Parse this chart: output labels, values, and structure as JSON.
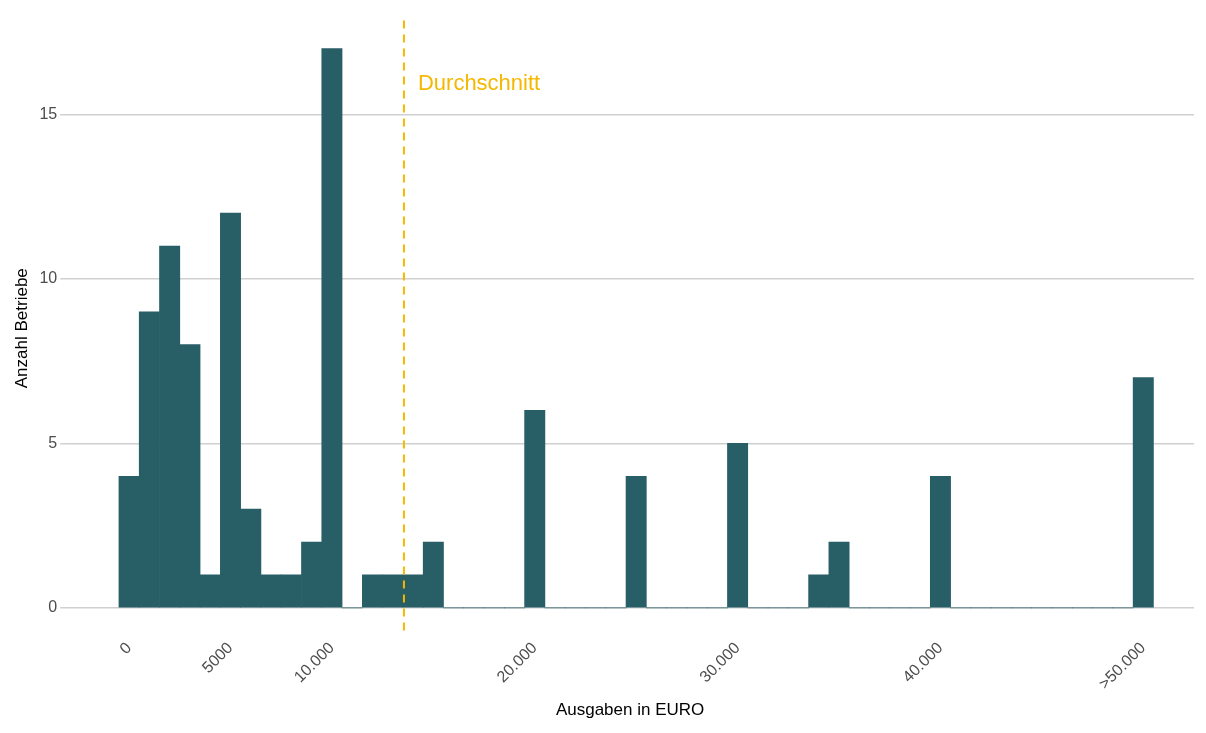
{
  "chart_data": {
    "type": "histogram",
    "xlabel": "Ausgaben in EURO",
    "ylabel": "Anzahl Betriebe",
    "bins": [
      -500,
      500,
      1500,
      2500,
      3500,
      4500,
      5500,
      6500,
      7500,
      8500,
      9500,
      10500,
      11500,
      12500,
      13500,
      14500,
      15500,
      16500,
      17500,
      18500,
      19500,
      20500,
      21500,
      22500,
      23500,
      24500,
      25500,
      26500,
      27500,
      28500,
      29500,
      30500,
      31500,
      32500,
      33500,
      34500,
      35500,
      36500,
      37500,
      38500,
      39500,
      40500,
      41500,
      42500,
      43500,
      44500,
      45500,
      46500,
      47500,
      48500,
      49500,
      50500
    ],
    "values": [
      4,
      9,
      11,
      8,
      1,
      12,
      3,
      1,
      1,
      2,
      17,
      0,
      1,
      1,
      1,
      2,
      0,
      0,
      0,
      0,
      6,
      0,
      0,
      0,
      0,
      4,
      0,
      0,
      0,
      0,
      5,
      0,
      0,
      0,
      1,
      2,
      0,
      0,
      0,
      0,
      4,
      0,
      0,
      0,
      0,
      0,
      0,
      0,
      0,
      0,
      7
    ],
    "color": "#285e66",
    "xlim": [
      -3100,
      52500
    ],
    "xticks": [
      0,
      {
        "value": 5000,
        "label": "5000"
      },
      {
        "value": 10000,
        "label": "10.000"
      },
      {
        "value": 20000,
        "label": "20.000"
      },
      {
        "value": 30000,
        "label": "30.000"
      },
      {
        "value": 40000,
        "label": "40.000"
      },
      {
        "value": 50000,
        "label": ">50.000"
      }
    ],
    "ylim": [
      -0.85,
      17.85
    ],
    "yticks": [
      0,
      5,
      10,
      15
    ],
    "grid": "y",
    "ref_lines": [
      {
        "axis": "x",
        "value": 13550,
        "label": "Durchschnitt",
        "color": "#f5b800",
        "line_style": "dashed"
      }
    ]
  }
}
